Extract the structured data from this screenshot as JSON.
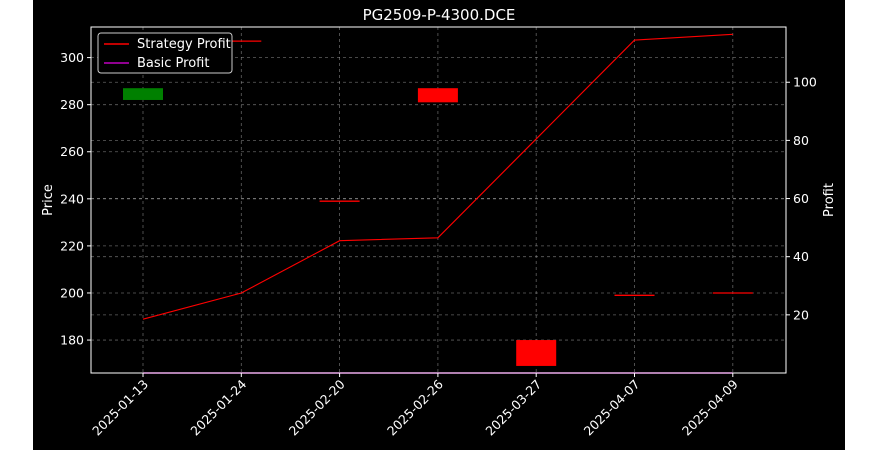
{
  "chart_data": {
    "type": "line",
    "title": "PG2509-P-4300.DCE",
    "xlabel": "",
    "ylabel_left": "Price",
    "ylabel_right": "Profit",
    "x": [
      "2025-01-13",
      "2025-01-24",
      "2025-02-20",
      "2025-02-26",
      "2025-03-27",
      "2025-04-07",
      "2025-04-09"
    ],
    "ylim_left": [
      166,
      313
    ],
    "ylim_right": [
      0,
      119
    ],
    "yticks_left": [
      180,
      200,
      220,
      240,
      260,
      280,
      300
    ],
    "yticks_right": [
      20,
      40,
      60,
      80,
      100
    ],
    "grid": true,
    "legend": "top-left",
    "candles": [
      {
        "date": "2025-01-13",
        "open": 282,
        "close": 287,
        "color": "#008000"
      },
      {
        "date": "2025-01-24",
        "open": 307,
        "close": 307,
        "color": "#ff0000"
      },
      {
        "date": "2025-02-20",
        "open": 239,
        "close": 239,
        "color": "#ff0000"
      },
      {
        "date": "2025-02-26",
        "open": 287,
        "close": 281,
        "color": "#ff0000"
      },
      {
        "date": "2025-03-27",
        "open": 180,
        "close": 169,
        "color": "#ff0000"
      },
      {
        "date": "2025-04-07",
        "open": 199,
        "close": 199,
        "color": "#ff0000"
      },
      {
        "date": "2025-04-09",
        "open": 200,
        "close": 200,
        "color": "#ff0000"
      }
    ],
    "series": [
      {
        "name": "Strategy Profit",
        "color": "#ff0000",
        "axis": "right",
        "values": [
          18.5,
          27.5,
          45.5,
          46.5,
          80.5,
          114.5,
          116.5
        ]
      },
      {
        "name": "Basic Profit",
        "color": "#bf00bf",
        "axis": "right",
        "values": [
          0,
          0,
          0,
          0,
          0,
          0,
          0
        ]
      }
    ]
  }
}
